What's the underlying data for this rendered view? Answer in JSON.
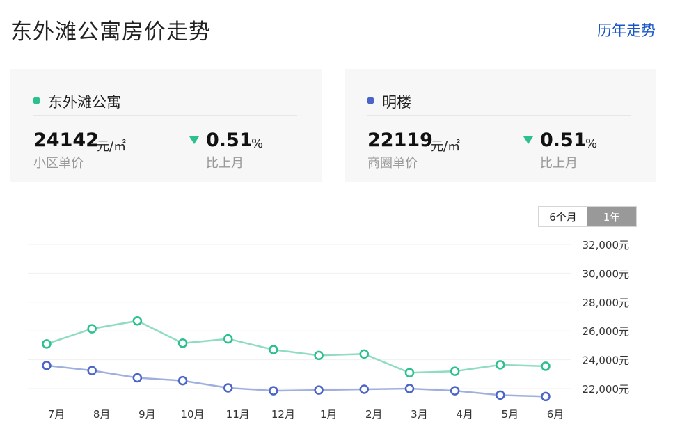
{
  "header": {
    "title": "东外滩公寓房价走势",
    "history_link": "历年走势"
  },
  "cards": [
    {
      "name": "东外滩公寓",
      "dot_color": "#2bc08f",
      "price": "24142",
      "unit": "元/㎡",
      "price_label": "小区单价",
      "change": "0.51",
      "change_unit": "%",
      "change_label": "比上月"
    },
    {
      "name": "明楼",
      "dot_color": "#4a64c8",
      "price": "22119",
      "unit": "元/㎡",
      "price_label": "商圈单价",
      "change": "0.51",
      "change_unit": "%",
      "change_label": "比上月"
    }
  ],
  "range_toggle": {
    "options": [
      "6个月",
      "1年"
    ],
    "selected": "1年"
  },
  "chart_data": {
    "type": "line",
    "categories": [
      "7月",
      "8月",
      "9月",
      "10月",
      "11月",
      "12月",
      "1月",
      "2月",
      "3月",
      "4月",
      "5月",
      "6月"
    ],
    "series": [
      {
        "name": "东外滩公寓",
        "color": "#2bc08f",
        "line_color": "#8fdcc1",
        "values": [
          25100,
          26150,
          26700,
          25150,
          25450,
          24700,
          24300,
          24400,
          23100,
          23200,
          23650,
          23550
        ]
      },
      {
        "name": "明楼",
        "color": "#4a64c8",
        "line_color": "#a0b0de",
        "values": [
          23600,
          23250,
          22750,
          22550,
          22050,
          21850,
          21900,
          21950,
          22000,
          21850,
          21550,
          21450
        ]
      }
    ],
    "y_ticks": [
      "32,000元",
      "30,000元",
      "28,000元",
      "26,000元",
      "24,000元",
      "22,000元"
    ],
    "ylim": [
      21000,
      32000
    ],
    "grid": true
  }
}
